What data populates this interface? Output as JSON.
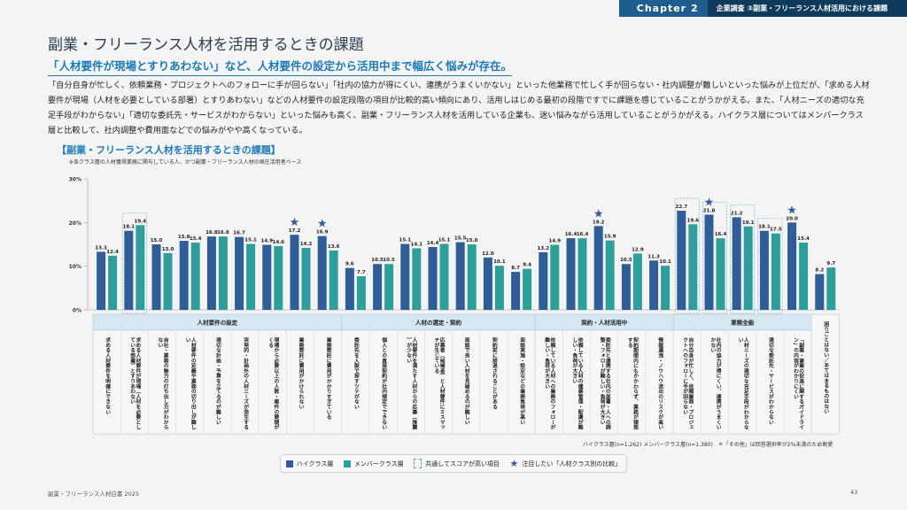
{
  "header": {
    "chapter": "Chapter 2",
    "section": "企業調査 ③副業・フリーランス人材活用における課題"
  },
  "page": {
    "title": "副業・フリーランス人材を活用するときの課題",
    "subtitle": "「人材要件が現場とすりあわない」など、人材要件の設定から活用中まで幅広く悩みが存在。",
    "body": "「自分自身が忙しく、依頼業務・プロジェクトへのフォローに手が回らない」「社内の協力が得にくい、連携がうまくいかない」といった他業務で忙しく手が回らない・社内調整が難しいといった悩みが上位だが、「求める人材要件が現場（人材を必要としている部署）とすりあわない」などの人材要件の設定段階の項目が比較的高い傾向にあり、活用しはじめる最初の段階ですでに課題を感じていることがうかがえる。また、「人材ニーズの適切な充足手段がわからない」「適切な委託先・サービスがわからない」といった悩みも高く、副業・フリーランス人材を活用している企業も、迷い悩みながら活用していることがうかがえる。ハイクラス層についてはメンバークラス層と比較して、社内調整や費用面などでの悩みがやや高くなっている。",
    "chart_title": "【副業・フリーランス人材を活用するときの課題】",
    "chart_note": "※各クラス層の人材獲得業務に関与している人、かつ副業・フリーランス人材の現在活用者ベース",
    "sample_note": "ハイクラス層(n=1,262) メンバークラス層(n=1,380)　＊「その他」は回答選択率が2%未満のため割愛",
    "footer_left": "副業・フリーランス人材白書 2025",
    "page_number": "43"
  },
  "legend": {
    "high": "ハイクラス層",
    "member": "メンバークラス層",
    "common": "共通してスコアが高い項目",
    "star": "注目したい「人材クラス別の比較」"
  },
  "colors": {
    "high": "#2f5d98",
    "member": "#2e9e9b",
    "accent": "#1b7bb8",
    "group_header": "#d5e7f0"
  },
  "chart_data": {
    "type": "bar",
    "title": "【副業・フリーランス人材を活用するときの課題】",
    "ylabel": "",
    "ylim": [
      0,
      30
    ],
    "yticks": [
      "0%",
      "10%",
      "20%",
      "30%"
    ],
    "groups": [
      {
        "name": "人材要件の設定",
        "count": 9
      },
      {
        "name": "人材の選定・契約",
        "count": 7
      },
      {
        "name": "契約・人材活用中",
        "count": 5
      },
      {
        "name": "業務全般",
        "count": 5
      },
      {
        "name": "",
        "count": 1
      }
    ],
    "categories": [
      "求める人材要件を明確にできない",
      "求める人材要件が現場（人材を必要としている部署）とすりあわない",
      "自社・業務の魅力の打ち出し方がわからない",
      "人材要件の定義や業務の切り出しが難しい",
      "適切な計画・予算を立てるのが難しい",
      "突発的・計画外の人材ニーズが発生する",
      "現場から必要以上の人数・案件の要請がくる",
      "業務委託に費用がかけられない",
      "業務委託に費用がかかりすぎている",
      "委託先を人脈で探すツテがない",
      "個人との直接契約が社内規定でできない",
      "人材要件を満たす人材からの応募（推薦）が少ない",
      "応募者（候補者）と人材要件にミスマッチが生じている",
      "面談で良い人材を見極めるのが難しい",
      "契約前に辞退されることがある",
      "面談実施・設定などの業務負荷が高い",
      "依頼している人材への業務のフォローが難しい・負荷が大きい",
      "依頼している人材の健康管理・配慮が難しい・負荷が大きい",
      "委託先と連携する社内の部署・人への調整・フォローが難しい・負荷が大きい",
      "契約期間内にもかかわらず、業務が頓挫する",
      "情報漏洩・ノウハウ流出のリスクが高い",
      "自分自身が忙しく、依頼業務・プロジェクトへのフォローに手が回らない",
      "社内の協力が得にくい、連携がうまくいかない",
      "人材ニーズの適切な充足手段がわからない",
      "適切な委託先・サービスがわからない",
      "「副業・兼業の促進に関するガイドライン」の内容がわかりにくい",
      "困りごとはない／あてはまるものはない"
    ],
    "series": [
      {
        "name": "ハイクラス層",
        "values": [
          13.3,
          18.1,
          15.0,
          15.8,
          16.8,
          16.7,
          14.9,
          17.2,
          16.9,
          9.6,
          10.5,
          15.1,
          14.4,
          15.5,
          12.0,
          8.7,
          13.2,
          16.4,
          19.2,
          10.5,
          11.3,
          22.7,
          21.8,
          21.2,
          18.1,
          20.0,
          8.2
        ]
      },
      {
        "name": "メンバークラス層",
        "values": [
          12.4,
          19.4,
          13.0,
          15.4,
          16.8,
          15.1,
          14.6,
          14.2,
          13.6,
          7.7,
          10.5,
          14.1,
          15.1,
          15.0,
          10.1,
          9.4,
          14.9,
          16.4,
          15.9,
          12.9,
          10.1,
          19.6,
          16.4,
          19.1,
          17.5,
          15.4,
          9.7
        ]
      }
    ],
    "common_high": [
      1,
      21,
      22,
      23,
      24
    ],
    "starred": [
      7,
      8,
      18,
      22,
      25
    ]
  }
}
